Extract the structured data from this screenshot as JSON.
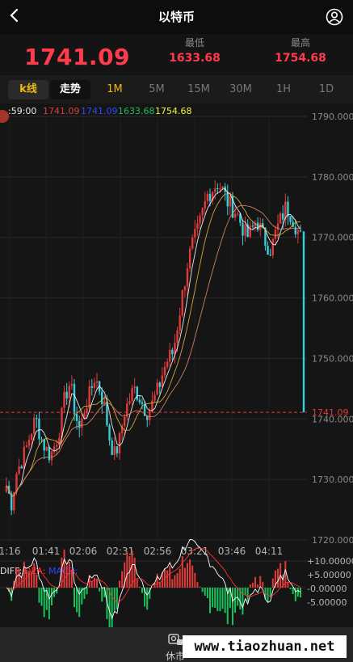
{
  "header": {
    "title": "以特币",
    "back_icon": "chevron-left-icon",
    "user_icon": "user-circle-icon"
  },
  "quote": {
    "price": "1741.09",
    "low_label": "最低",
    "low_value": "1633.68",
    "high_label": "最高",
    "high_value": "1754.68",
    "color": "#ff3b4d"
  },
  "tabs": [
    {
      "label": "k线"
    },
    {
      "label": "走势"
    },
    {
      "label": "1M"
    },
    {
      "label": "5M"
    },
    {
      "label": "15M"
    },
    {
      "label": "30M"
    },
    {
      "label": "1H"
    },
    {
      "label": "1D"
    }
  ],
  "info_bar": {
    "time": ":59:00",
    "open": "1741.09",
    "close": "1741.09",
    "low": "1633.68",
    "high": "1754.68"
  },
  "chart_data": {
    "type": "candlestick",
    "y_ticks": [
      "1790.000",
      "1780.000",
      "1770.000",
      "1760.000",
      "1750.000",
      "1740.000",
      "1730.000",
      "1720.000"
    ],
    "ylim": [
      1720,
      1790
    ],
    "x_ticks": [
      "1:16",
      "01:41",
      "02:06",
      "02:31",
      "02:56",
      "03:21",
      "03:46",
      "04:11"
    ],
    "last_price_label": "1741.09",
    "last_price": 1741.09,
    "macd_labels": {
      "diff": "DIFF:",
      "dea": "DEA:",
      "macd": "MACD:"
    },
    "macd_ticks": [
      "+10.00000",
      "+5.00000",
      "-0.00000",
      "-5.00000"
    ],
    "colors": {
      "up": "#e03b3b",
      "down": "#35d0d8",
      "ma1": "#ffffff",
      "ma2": "#e8b23c",
      "ma3": "#e08a6a",
      "diff": "#ffffff",
      "dea": "#ff3030",
      "macd_pos": "#e03b3b",
      "macd_neg": "#16c25a",
      "grid": "#2a2a2a",
      "axis_text": "#8a8a8a"
    }
  },
  "bottom": {
    "closed_label": "休市",
    "closed_icon": "market-closed-icon",
    "watermark": "www.tiaozhuan.net"
  }
}
